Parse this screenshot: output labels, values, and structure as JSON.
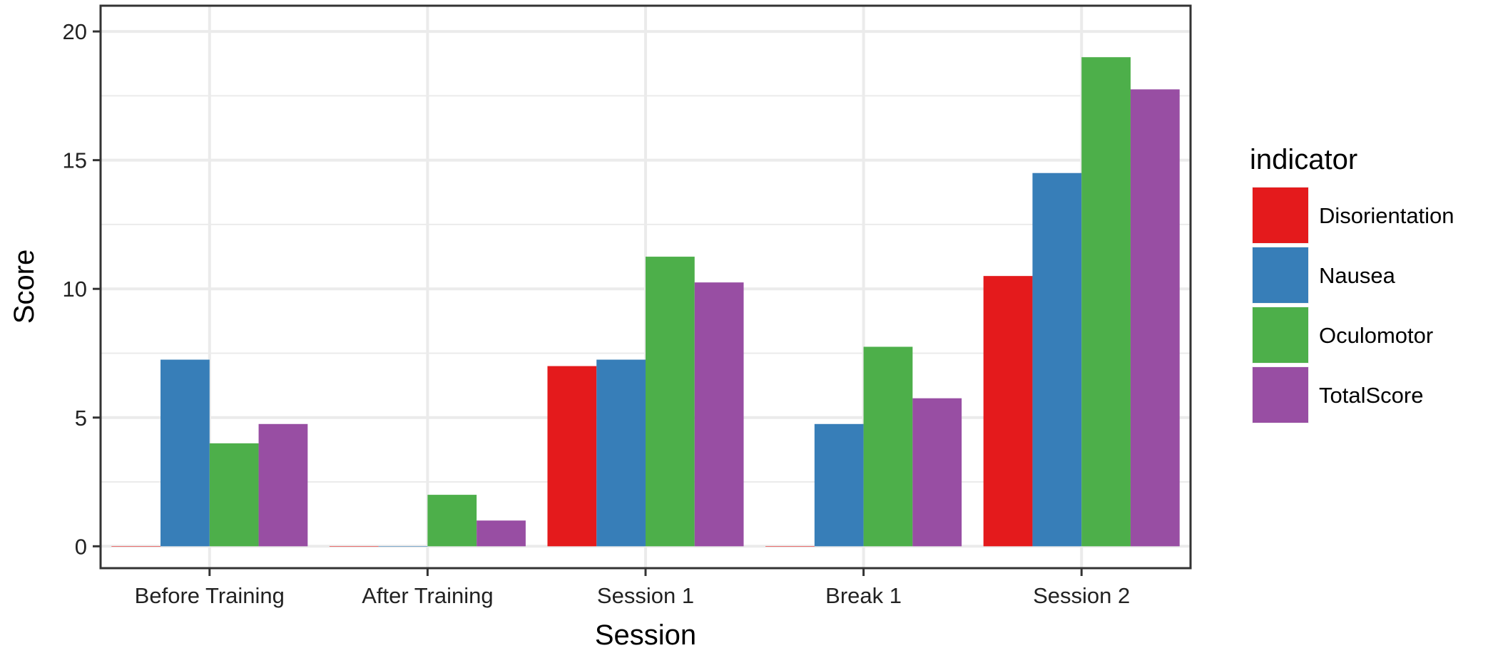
{
  "chart_data": {
    "type": "bar",
    "xlabel": "Session",
    "ylabel": "Score",
    "categories": [
      "Before Training",
      "After Training",
      "Session 1",
      "Break 1",
      "Session 2"
    ],
    "ylim": [
      -0.85,
      21
    ],
    "yticks": [
      0,
      5,
      10,
      15,
      20
    ],
    "grid": true,
    "legend": {
      "title": "indicator",
      "position": "right"
    },
    "series": [
      {
        "name": "Disorientation",
        "color": "#E41A1C",
        "values": [
          0,
          0,
          7,
          0,
          10.5
        ]
      },
      {
        "name": "Nausea",
        "color": "#377EB8",
        "values": [
          7.25,
          0,
          7.25,
          4.75,
          14.5
        ]
      },
      {
        "name": "Oculomotor",
        "color": "#4DAF4A",
        "values": [
          4,
          2,
          11.25,
          7.75,
          19
        ]
      },
      {
        "name": "TotalScore",
        "color": "#984EA3",
        "values": [
          4.75,
          1,
          10.25,
          5.75,
          17.75
        ]
      }
    ]
  }
}
